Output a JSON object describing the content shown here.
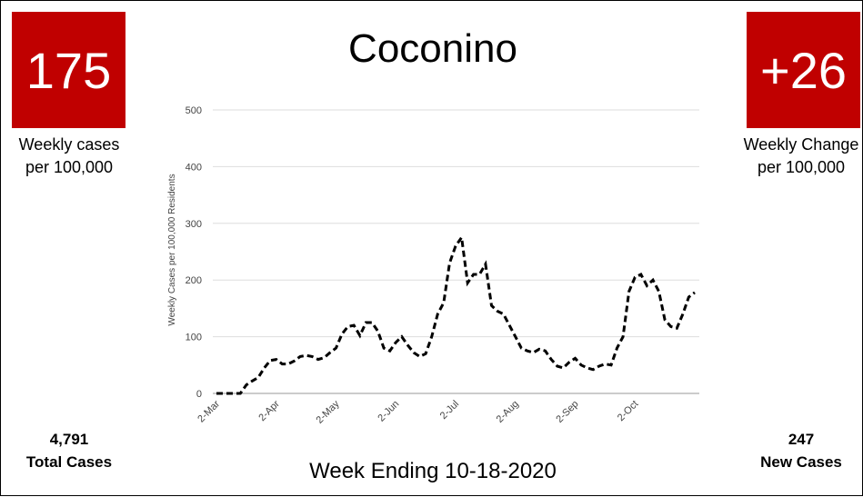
{
  "kpi_left": {
    "value": "175",
    "caption": "Weekly cases per 100,000"
  },
  "kpi_right": {
    "value": "+26",
    "caption": "Weekly Change per 100,000"
  },
  "bottom_left": {
    "value": "4,791",
    "label": "Total Cases"
  },
  "bottom_right": {
    "value": "247",
    "label": "New Cases"
  },
  "chart_data": {
    "type": "line",
    "title": "Coconino",
    "xlabel": "Week Ending 10-18-2020",
    "ylabel": "Weekly Cases per 100,000 Residents",
    "categories": [
      "2-Mar",
      null,
      null,
      null,
      null,
      null,
      null,
      null,
      null,
      null,
      "2-Apr",
      null,
      null,
      null,
      null,
      null,
      null,
      null,
      null,
      null,
      "2-May",
      null,
      null,
      null,
      null,
      null,
      null,
      null,
      null,
      null,
      "2-Jun",
      null,
      null,
      null,
      null,
      null,
      null,
      null,
      null,
      null,
      "2-Jul",
      null,
      null,
      null,
      null,
      null,
      null,
      null,
      null,
      null,
      "2-Aug",
      null,
      null,
      null,
      null,
      null,
      null,
      null,
      null,
      null,
      "2-Sep",
      null,
      null,
      null,
      null,
      null,
      null,
      null,
      null,
      null,
      "2-Oct",
      null,
      null,
      null,
      null,
      null,
      null,
      null,
      null,
      null,
      null
    ],
    "series": [
      {
        "name": "Weekly Cases per 100,000 Residents",
        "color": "#000000",
        "values": [
          0,
          0,
          0,
          0,
          0,
          15,
          22,
          28,
          45,
          58,
          60,
          52,
          52,
          57,
          65,
          67,
          65,
          60,
          63,
          72,
          80,
          105,
          118,
          120,
          102,
          125,
          125,
          110,
          80,
          75,
          90,
          100,
          85,
          72,
          65,
          70,
          100,
          140,
          160,
          230,
          260,
          275,
          195,
          210,
          210,
          228,
          155,
          145,
          140,
          120,
          100,
          80,
          75,
          72,
          78,
          75,
          60,
          48,
          45,
          55,
          62,
          50,
          45,
          42,
          48,
          52,
          50,
          80,
          100,
          180,
          205,
          210,
          190,
          200,
          180,
          130,
          118,
          115,
          140,
          170,
          178
        ]
      }
    ],
    "ylim": [
      0,
      500
    ],
    "yticks": [
      0,
      100,
      200,
      300,
      400,
      500
    ],
    "grid": true
  }
}
